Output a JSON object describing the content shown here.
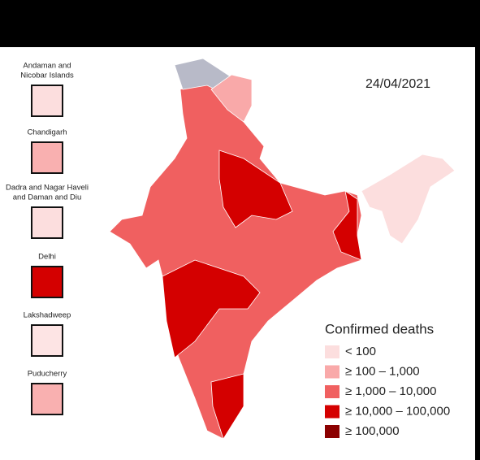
{
  "date": "24/04/2021",
  "insets": [
    {
      "label": [
        "Andaman and",
        "Nicobar Islands"
      ],
      "color": "#fcdede"
    },
    {
      "label": [
        "Chandigarh"
      ],
      "color": "#f9b0b0"
    },
    {
      "label": [
        "Dadra and Nagar Haveli",
        "and Daman and Diu"
      ],
      "color": "#fcdede"
    },
    {
      "label": [
        "Delhi"
      ],
      "color": "#d40000"
    },
    {
      "label": [
        "Lakshadweep"
      ],
      "color": "#fde4e4"
    },
    {
      "label": [
        "Puducherry"
      ],
      "color": "#f9b0b0"
    }
  ],
  "legend": {
    "title": "Confirmed deaths",
    "items": [
      {
        "label": "< 100",
        "color": "#fcdede"
      },
      {
        "label": "≥ 100 – 1,000",
        "color": "#f9a9a9"
      },
      {
        "label": "≥ 1,000 – 10,000",
        "color": "#f06060"
      },
      {
        "label": "≥ 10,000 – 100,000",
        "color": "#d40000"
      },
      {
        "label": "≥ 100,000",
        "color": "#8b0000"
      }
    ]
  }
}
